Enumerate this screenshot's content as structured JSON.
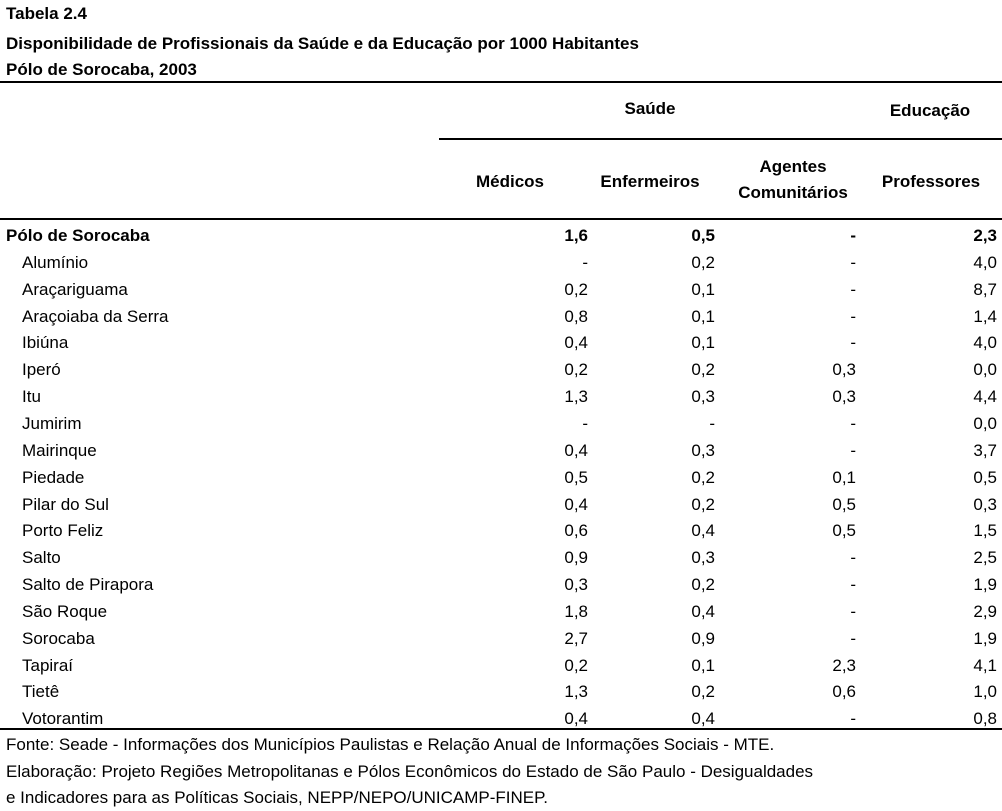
{
  "table_label": "Tabela 2.4",
  "title": "Disponibilidade de Profissionais da Saúde e da Educação por 1000 Habitantes",
  "subtitle": "Pólo de Sorocaba, 2003",
  "group_headers": {
    "saude": "Saúde",
    "educacao": "Educação"
  },
  "columns": {
    "medicos": "Médicos",
    "enfermeiros": "Enfermeiros",
    "agentes_line1": "Agentes",
    "agentes_line2": "Comunitários",
    "professores": "Professores"
  },
  "rows": [
    {
      "name": "Pólo de Sorocaba",
      "medicos": "1,6",
      "enfermeiros": "0,5",
      "agentes": "-",
      "professores": "2,3"
    },
    {
      "name": "Alumínio",
      "medicos": "-",
      "enfermeiros": "0,2",
      "agentes": "-",
      "professores": "4,0"
    },
    {
      "name": "Araçariguama",
      "medicos": "0,2",
      "enfermeiros": "0,1",
      "agentes": "-",
      "professores": "8,7"
    },
    {
      "name": "Araçoiaba da Serra",
      "medicos": "0,8",
      "enfermeiros": "0,1",
      "agentes": "-",
      "professores": "1,4"
    },
    {
      "name": "Ibiúna",
      "medicos": "0,4",
      "enfermeiros": "0,1",
      "agentes": "-",
      "professores": "4,0"
    },
    {
      "name": "Iperó",
      "medicos": "0,2",
      "enfermeiros": "0,2",
      "agentes": "0,3",
      "professores": "0,0"
    },
    {
      "name": "Itu",
      "medicos": "1,3",
      "enfermeiros": "0,3",
      "agentes": "0,3",
      "professores": "4,4"
    },
    {
      "name": "Jumirim",
      "medicos": "-",
      "enfermeiros": "-",
      "agentes": "-",
      "professores": "0,0"
    },
    {
      "name": "Mairinque",
      "medicos": "0,4",
      "enfermeiros": "0,3",
      "agentes": "-",
      "professores": "3,7"
    },
    {
      "name": "Piedade",
      "medicos": "0,5",
      "enfermeiros": "0,2",
      "agentes": "0,1",
      "professores": "0,5"
    },
    {
      "name": "Pilar do Sul",
      "medicos": "0,4",
      "enfermeiros": "0,2",
      "agentes": "0,5",
      "professores": "0,3"
    },
    {
      "name": "Porto Feliz",
      "medicos": "0,6",
      "enfermeiros": "0,4",
      "agentes": "0,5",
      "professores": "1,5"
    },
    {
      "name": "Salto",
      "medicos": "0,9",
      "enfermeiros": "0,3",
      "agentes": "-",
      "professores": "2,5"
    },
    {
      "name": "Salto de Pirapora",
      "medicos": "0,3",
      "enfermeiros": "0,2",
      "agentes": "-",
      "professores": "1,9"
    },
    {
      "name": "São Roque",
      "medicos": "1,8",
      "enfermeiros": "0,4",
      "agentes": "-",
      "professores": "2,9"
    },
    {
      "name": "Sorocaba",
      "medicos": "2,7",
      "enfermeiros": "0,9",
      "agentes": "-",
      "professores": "1,9"
    },
    {
      "name": "Tapiraí",
      "medicos": "0,2",
      "enfermeiros": "0,1",
      "agentes": "2,3",
      "professores": "4,1"
    },
    {
      "name": "Tietê",
      "medicos": "1,3",
      "enfermeiros": "0,2",
      "agentes": "0,6",
      "professores": "1,0"
    },
    {
      "name": "Votorantim",
      "medicos": "0,4",
      "enfermeiros": "0,4",
      "agentes": "-",
      "professores": "0,8"
    }
  ],
  "footnotes": {
    "fonte": "Fonte: Seade - Informações dos Municípios Paulistas e Relação Anual de Informações Sociais - MTE.",
    "elaboracao_line1": "Elaboração: Projeto Regiões Metropolitanas e Pólos Econômicos do Estado de São Paulo - Desigualdades",
    "elaboracao_line2": "e Indicadores para as Políticas Sociais, NEPP/NEPO/UNICAMP-FINEP."
  }
}
